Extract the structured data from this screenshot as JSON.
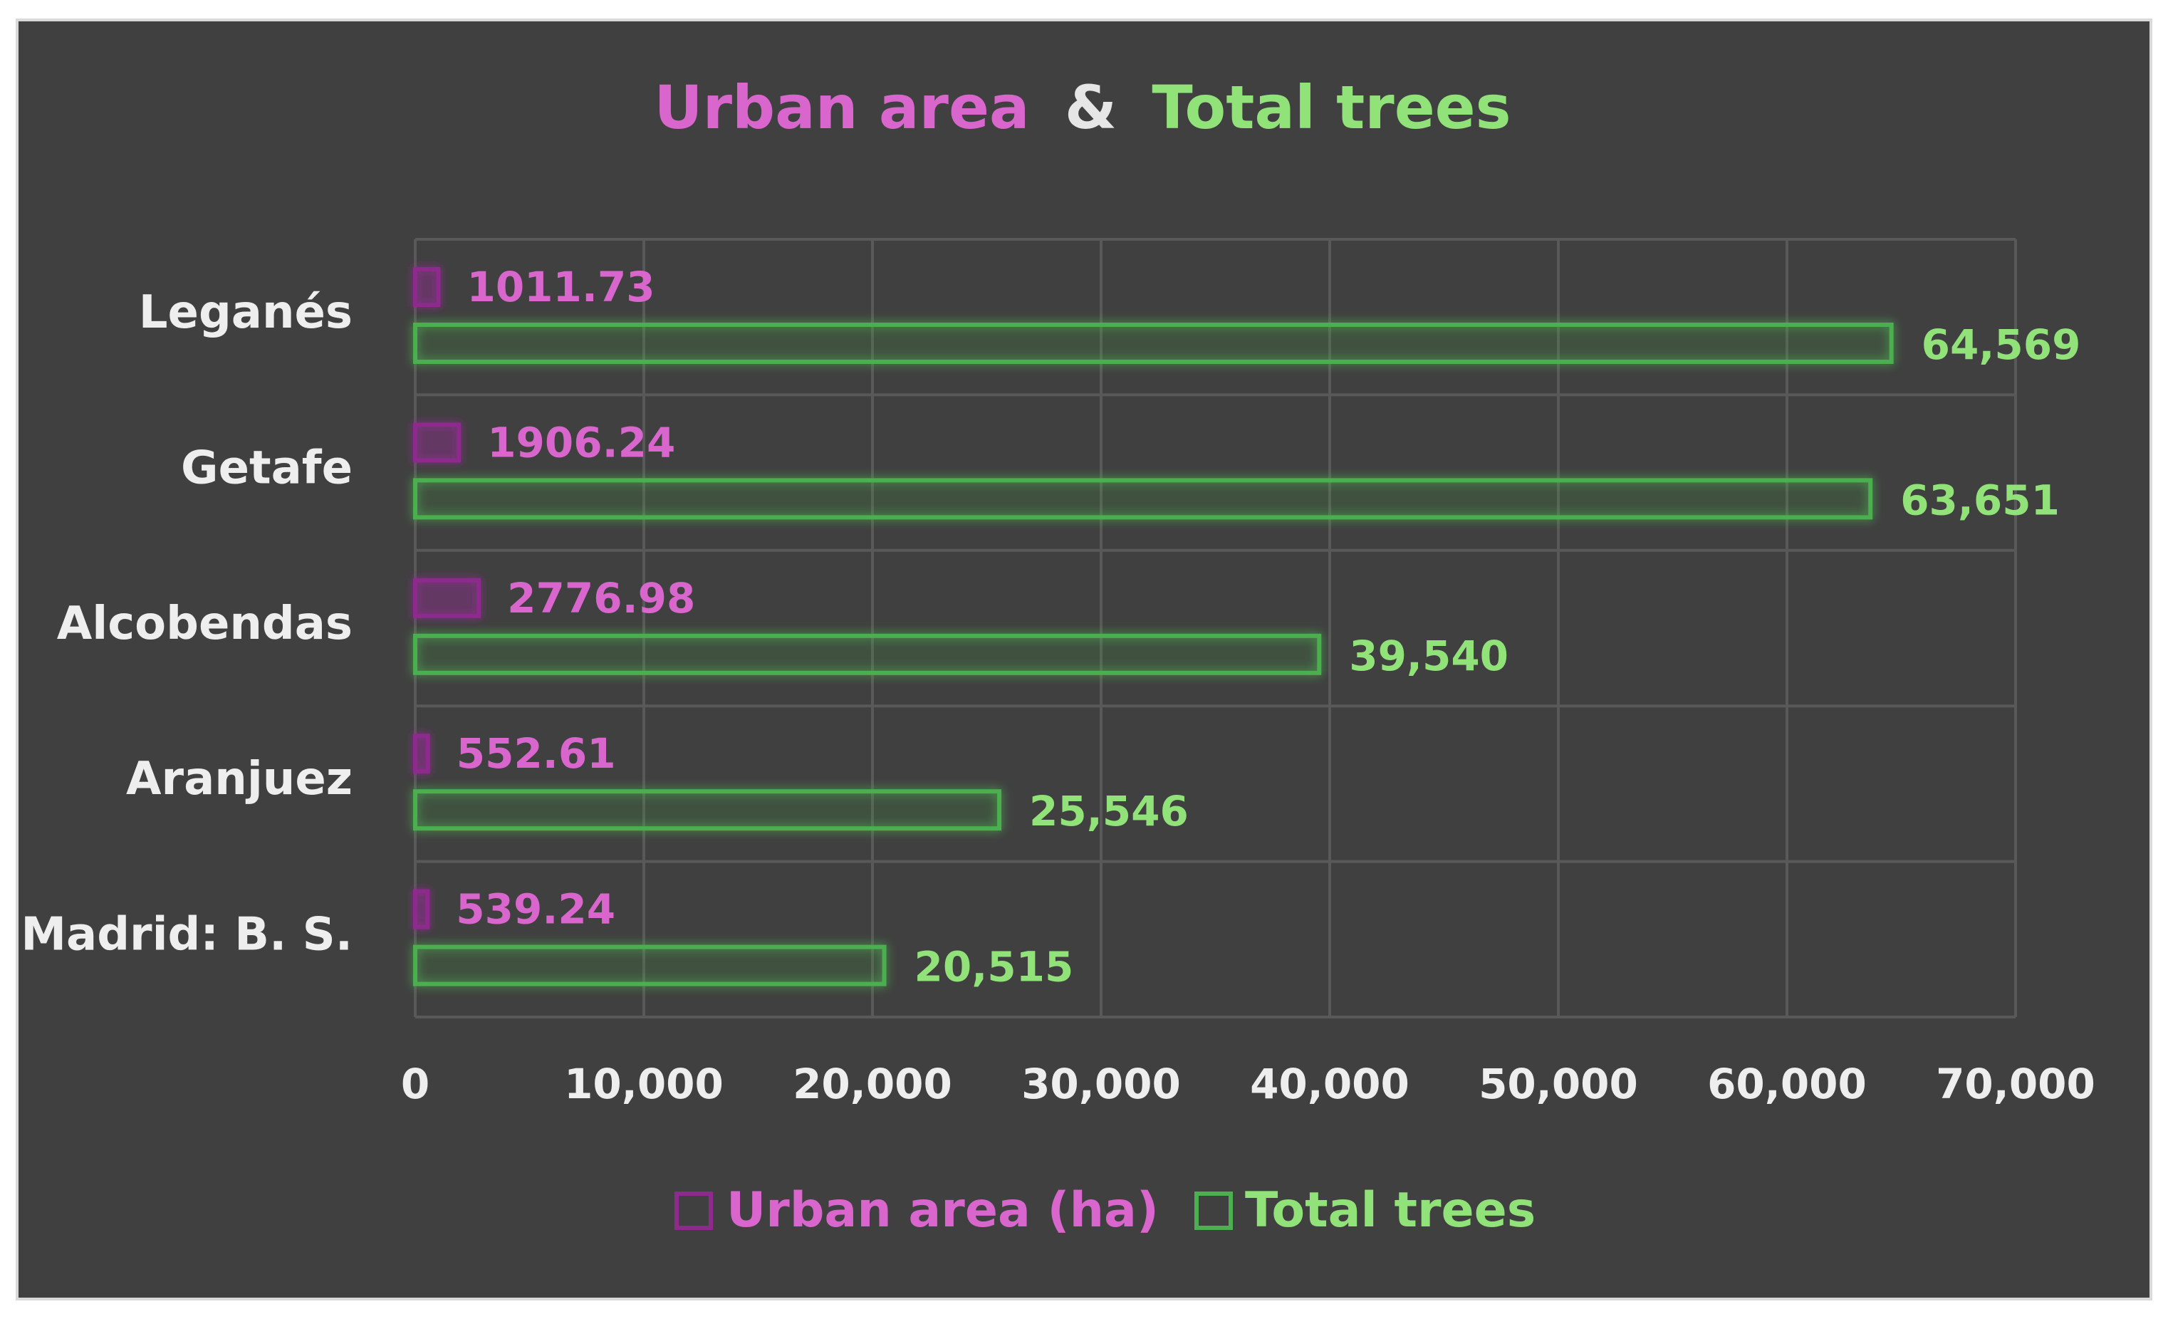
{
  "chart_data": {
    "type": "bar",
    "orientation": "horizontal",
    "title": {
      "part1": "Urban area",
      "joiner": "&",
      "part2": "Total trees"
    },
    "categories": [
      "Leganés",
      "Getafe",
      "Alcobendas",
      "Aranjuez",
      "Madrid: B. S."
    ],
    "series": [
      {
        "name": "Urban area (ha)",
        "values": [
          1011.73,
          1906.24,
          2776.98,
          552.61,
          539.24
        ],
        "labels": [
          "1011.73",
          "1906.24",
          "2776.98",
          "552.61",
          "539.24"
        ]
      },
      {
        "name": "Total trees",
        "values": [
          64569,
          63651,
          39540,
          25546,
          20515
        ],
        "labels": [
          "64,569",
          "63,651",
          "39,540",
          "25,546",
          "20,515"
        ]
      }
    ],
    "xlim": [
      0,
      70000
    ],
    "xticks": [
      "0",
      "10,000",
      "20,000",
      "30,000",
      "40,000",
      "50,000",
      "60,000",
      "70,000"
    ],
    "grid": true,
    "legend_position": "bottom",
    "colors": {
      "background": "#404040",
      "urban": "#8e2a8e",
      "urban_text": "#d966cc",
      "trees": "#4caf50",
      "trees_text": "#92e27a",
      "title_joiner": "#e6e6e6",
      "axis_text": "#eeeeee",
      "grid": "#595959"
    }
  }
}
